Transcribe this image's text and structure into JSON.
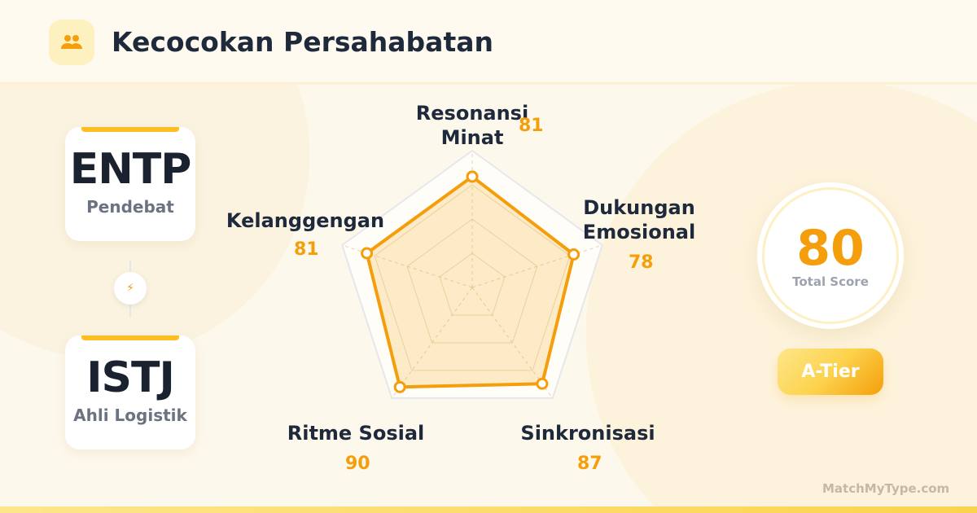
{
  "header": {
    "title": "Kecocokan Persahabatan",
    "icon": "users-icon"
  },
  "types": [
    {
      "code": "ENTP",
      "name": "Pendebat"
    },
    {
      "code": "ISTJ",
      "name": "Ahli Logistik"
    }
  ],
  "connector_icon": "lightning-bolt-icon",
  "chart_data": {
    "type": "radar",
    "categories": [
      "Resonansi Minat",
      "Dukungan Emosional",
      "Sinkronisasi",
      "Ritme Sosial",
      "Kelanggengan"
    ],
    "values": [
      81,
      78,
      87,
      90,
      81
    ],
    "range": [
      0,
      100
    ],
    "grid": true,
    "color": "#f59e0b"
  },
  "labels": {
    "c0a": "Resonansi",
    "c0b": "Minat",
    "c1a": "Dukungan",
    "c1b": "Emosional",
    "c2": "Sinkronisasi",
    "c3": "Ritme Sosial",
    "c4": "Kelanggengan",
    "v0": "81",
    "v1": "78",
    "v2": "87",
    "v3": "90",
    "v4": "81"
  },
  "score": {
    "value": "80",
    "label": "Total Score",
    "tier": "A-Tier"
  },
  "brand": "MatchMyType.com"
}
